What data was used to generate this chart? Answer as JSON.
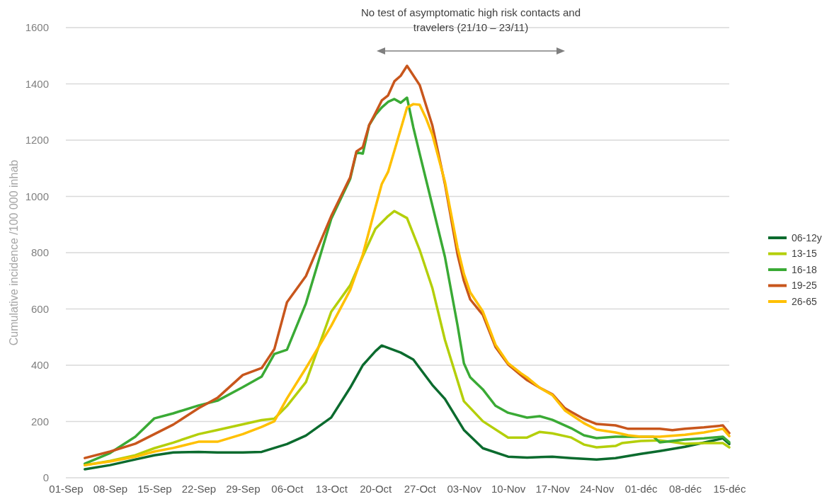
{
  "chart_data": {
    "type": "line",
    "ylabel": "Cumulative incidence  /100 000 inhab",
    "annotations": [
      "No test of asymptomatic high risk contacts and travelers (21/10 – 23/11)"
    ],
    "xlim": [
      "--09-01",
      "--12-15"
    ],
    "xticks": [
      {
        "value": "--09-01",
        "label": "01-Sep"
      },
      {
        "value": "--09-08",
        "label": "08-Sep"
      },
      {
        "value": "--09-15",
        "label": "15-Sep"
      },
      {
        "value": "--09-22",
        "label": "22-Sep"
      },
      {
        "value": "--09-29",
        "label": "29-Sep"
      },
      {
        "value": "--10-06",
        "label": "06-Oct"
      },
      {
        "value": "--10-13",
        "label": "13-Oct"
      },
      {
        "value": "--10-20",
        "label": "20-Oct"
      },
      {
        "value": "--10-27",
        "label": "27-Oct"
      },
      {
        "value": "--11-03",
        "label": "03-Nov"
      },
      {
        "value": "--11-10",
        "label": "10-Nov"
      },
      {
        "value": "--11-17",
        "label": "17-Nov"
      },
      {
        "value": "--11-24",
        "label": "24-Nov"
      },
      {
        "value": "--12-01",
        "label": "01-déc"
      },
      {
        "value": "--12-08",
        "label": "08-déc"
      },
      {
        "value": "--12-15",
        "label": "15-déc"
      }
    ],
    "ylim": [
      0,
      1600
    ],
    "yticks": [
      0,
      200,
      400,
      600,
      800,
      1000,
      1200,
      1400,
      1600
    ],
    "grid": "y",
    "legend": "right",
    "marker": "none",
    "line_style": "solid",
    "series": [
      {
        "name": "06-12y",
        "color": "#0b6b2e",
        "x": [
          "--09-04",
          "--09-08",
          "--09-12",
          "--09-15",
          "--09-18",
          "--09-22",
          "--09-25",
          "--09-29",
          "--10-02",
          "--10-06",
          "--10-09",
          "--10-13",
          "--10-16",
          "--10-18",
          "--10-20",
          "--10-21",
          "--10-24",
          "--10-26",
          "--10-27",
          "--10-29",
          "--10-31",
          "--11-03",
          "--11-06",
          "--11-10",
          "--11-13",
          "--11-17",
          "--11-20",
          "--11-24",
          "--11-27",
          "--12-01",
          "--12-04",
          "--12-08",
          "--12-11",
          "--12-14",
          "--12-15"
        ],
        "values": [
          30,
          45,
          65,
          80,
          90,
          92,
          90,
          90,
          92,
          120,
          150,
          214,
          320,
          400,
          450,
          470,
          445,
          420,
          390,
          330,
          280,
          170,
          105,
          75,
          72,
          75,
          70,
          65,
          70,
          85,
          95,
          110,
          125,
          140,
          120
        ]
      },
      {
        "name": "13-15",
        "color": "#b4cf0a",
        "x": [
          "--09-04",
          "--09-08",
          "--09-12",
          "--09-15",
          "--09-18",
          "--09-22",
          "--09-25",
          "--09-29",
          "--10-02",
          "--10-04",
          "--10-06",
          "--10-09",
          "--10-13",
          "--10-16",
          "--10-18",
          "--10-20",
          "--10-22",
          "--10-23",
          "--10-25",
          "--10-27",
          "--10-29",
          "--10-31",
          "--11-03",
          "--11-06",
          "--11-10",
          "--11-13",
          "--11-15",
          "--11-17",
          "--11-20",
          "--11-22",
          "--11-24",
          "--11-27",
          "--11-28",
          "--12-01",
          "--12-04",
          "--12-08",
          "--12-11",
          "--12-14",
          "--12-15"
        ],
        "values": [
          45,
          60,
          80,
          105,
          125,
          155,
          170,
          190,
          205,
          210,
          255,
          340,
          590,
          684,
          787,
          885,
          930,
          948,
          923,
          810,
          675,
          490,
          272,
          201,
          143,
          143,
          163,
          158,
          143,
          118,
          108,
          113,
          123,
          131,
          133,
          121,
          123,
          123,
          108
        ]
      },
      {
        "name": "16-18",
        "color": "#3aaa35",
        "x": [
          "--09-04",
          "--09-08",
          "--09-12",
          "--09-15",
          "--09-18",
          "--09-22",
          "--09-25",
          "--09-29",
          "--10-02",
          "--10-04",
          "--10-06",
          "--10-09",
          "--10-13",
          "--10-16",
          "--10-17",
          "--10-18",
          "--10-19",
          "--10-20",
          "--10-21",
          "--10-22",
          "--10-23",
          "--10-24",
          "--10-25",
          "--10-26",
          "--10-27",
          "--10-29",
          "--10-31",
          "--11-02",
          "--11-03",
          "--11-04",
          "--11-06",
          "--11-08",
          "--11-10",
          "--11-13",
          "--11-15",
          "--11-17",
          "--11-20",
          "--11-22",
          "--11-24",
          "--11-27",
          "--12-01",
          "--12-03",
          "--12-04",
          "--12-08",
          "--12-11",
          "--12-14",
          "--12-15"
        ],
        "values": [
          50,
          88,
          146,
          211,
          229,
          257,
          274,
          322,
          360,
          440,
          455,
          620,
          920,
          1062,
          1157,
          1152,
          1253,
          1290,
          1316,
          1336,
          1346,
          1333,
          1351,
          1245,
          1152,
          969,
          785,
          541,
          407,
          357,
          314,
          256,
          231,
          214,
          219,
          206,
          176,
          151,
          141,
          146,
          146,
          146,
          126,
          136,
          140,
          146,
          126
        ]
      },
      {
        "name": "19-25",
        "color": "#c8561c",
        "x": [
          "--09-04",
          "--09-08",
          "--09-12",
          "--09-15",
          "--09-18",
          "--09-22",
          "--09-25",
          "--09-29",
          "--10-02",
          "--10-04",
          "--10-06",
          "--10-09",
          "--10-13",
          "--10-16",
          "--10-17",
          "--10-18",
          "--10-19",
          "--10-20",
          "--10-21",
          "--10-22",
          "--10-23",
          "--10-24",
          "--10-25",
          "--10-27",
          "--10-29",
          "--10-31",
          "--11-02",
          "--11-03",
          "--11-04",
          "--11-06",
          "--11-08",
          "--11-10",
          "--11-12",
          "--11-13",
          "--11-15",
          "--11-17",
          "--11-19",
          "--11-20",
          "--11-22",
          "--11-24",
          "--11-27",
          "--11-29",
          "--12-01",
          "--12-04",
          "--12-06",
          "--12-08",
          "--12-11",
          "--12-14",
          "--12-15"
        ],
        "values": [
          70,
          93,
          121,
          155,
          189,
          247,
          284,
          365,
          390,
          457,
          624,
          717,
          930,
          1068,
          1160,
          1175,
          1253,
          1296,
          1341,
          1359,
          1409,
          1429,
          1464,
          1396,
          1253,
          1044,
          793,
          700,
          634,
          579,
          465,
          403,
          365,
          347,
          320,
          297,
          247,
          234,
          209,
          191,
          186,
          174,
          174,
          174,
          169,
          174,
          179,
          186,
          159
        ]
      },
      {
        "name": "26-65",
        "color": "#ffc000",
        "x": [
          "--09-04",
          "--09-08",
          "--09-12",
          "--09-15",
          "--09-18",
          "--09-22",
          "--09-25",
          "--09-29",
          "--10-02",
          "--10-04",
          "--10-06",
          "--10-09",
          "--10-13",
          "--10-16",
          "--10-18",
          "--10-20",
          "--10-21",
          "--10-22",
          "--10-23",
          "--10-25",
          "--10-26",
          "--10-27",
          "--10-28",
          "--10-29",
          "--10-31",
          "--11-02",
          "--11-03",
          "--11-04",
          "--11-06",
          "--11-08",
          "--11-10",
          "--11-12",
          "--11-13",
          "--11-15",
          "--11-17",
          "--11-19",
          "--11-20",
          "--11-22",
          "--11-24",
          "--11-27",
          "--11-29",
          "--12-01",
          "--12-04",
          "--12-08",
          "--12-11",
          "--12-14",
          "--12-15"
        ],
        "values": [
          45,
          58,
          75,
          93,
          106,
          128,
          128,
          155,
          181,
          201,
          282,
          390,
          540,
          667,
          793,
          961,
          1044,
          1087,
          1162,
          1316,
          1328,
          1326,
          1278,
          1220,
          1052,
          818,
          725,
          659,
          591,
          473,
          407,
          372,
          357,
          320,
          294,
          239,
          224,
          194,
          171,
          161,
          151,
          146,
          146,
          153,
          161,
          174,
          148
        ]
      }
    ]
  }
}
